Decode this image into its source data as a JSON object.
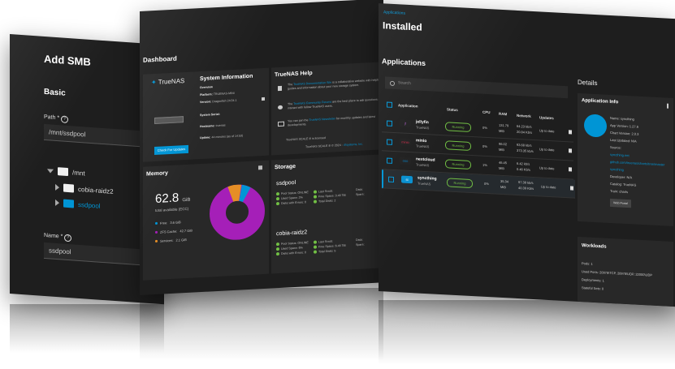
{
  "smb": {
    "title": "Add SMB",
    "section": "Basic",
    "path_label": "Path *",
    "path_value": "/mnt/ssdpool",
    "tree": [
      "/mnt",
      "cobia-raidz2",
      "ssdpool"
    ],
    "name_label": "Name *",
    "name_value": "ssdpool"
  },
  "dashboard": {
    "title": "Dashboard",
    "system_info": {
      "title": "System Information",
      "brand": "TrueNAS",
      "overview": "Overview",
      "rows": [
        {
          "k": "Platform:",
          "v": "TRUENAS-MINI"
        },
        {
          "k": "Version:",
          "v": "Dragonfish 24.04.1"
        },
        {
          "k": "System Serial:",
          "v": ""
        },
        {
          "k": "Hostname:",
          "v": "truenas"
        },
        {
          "k": "Uptime:",
          "v": "44 minutes (as of 14:53)"
        }
      ],
      "update_button": "Check For Updates"
    },
    "help": {
      "title": "TrueNAS Help",
      "rows": [
        {
          "pre": "The ",
          "link": "TrueNAS Documentation Site",
          "post": " is a collaborative website with helpful guides and information about your new storage system."
        },
        {
          "pre": "The ",
          "link": "TrueNAS Community Forums",
          "post": " are the best place to ask questions and interact with fellow TrueNAS users."
        },
        {
          "pre": "You can join the ",
          "link": "TrueNAS Newsletter",
          "post": " for monthly updates and latest developments."
        }
      ],
      "footer": "TrueNAS SCALE ® is licensed ",
      "copyright": "TrueNAS SCALE ® © 2024 - ",
      "ix": "iXsystems, Inc."
    },
    "memory": {
      "title": "Memory",
      "total": "62.8",
      "unit": "GiB",
      "subtitle": "total available (ECC)",
      "legend": [
        {
          "name": "Free:",
          "value": "3.6 GiB",
          "color": "#0095d5"
        },
        {
          "name": "ZFS Cache:",
          "value": "42.7 GiB",
          "color": "#a51fb8"
        },
        {
          "name": "Services:",
          "value": "2.1 GiB",
          "color": "#e58e26"
        }
      ]
    },
    "storage": {
      "title": "Storage",
      "pools": [
        {
          "name": "ssdpool",
          "lines": [
            "Pool Status: ONLINE",
            "Used Space: 2%",
            "Disks with Errors: 0"
          ],
          "lines2": [
            "Last Scrub:",
            "Free Space: 3.48 TiB",
            "Total Disks: 2"
          ],
          "lines3": [
            "Data:",
            "Spare:"
          ]
        },
        {
          "name": "cobia-raidz2",
          "lines": [
            "Pool Status: ONLINE",
            "Used Space: 6%",
            "Disks with Errors: 0"
          ],
          "lines2": [
            "Last Scrub:",
            "Free Space: 6.48 TiB",
            "Total Disks: 5"
          ],
          "lines3": [
            "Data:",
            "Spare:"
          ]
        }
      ]
    }
  },
  "installed": {
    "breadcrumb": "Applications",
    "title": "Installed",
    "apps_title": "Applications",
    "details_title": "Details",
    "search_placeholder": "Search",
    "headers": [
      "Application",
      "Status",
      "CPU",
      "RAM",
      "Network",
      "Updates"
    ],
    "apps": [
      {
        "name": "jellyfin",
        "catalog": "TrueNAS",
        "status": "Running",
        "cpu": "0%",
        "ram1": "131.79",
        "ram2": "MiB",
        "net1": "64.23 kb/s",
        "net2": "20.84 Kb/s",
        "updates": "Up to date",
        "logo_color": "#aa5cc3",
        "logo_bg": "#202020",
        "logo_text": "jf"
      },
      {
        "name": "minio",
        "catalog": "TrueNAS",
        "status": "Running",
        "cpu": "0%",
        "ram1": "96.02",
        "ram2": "MiB",
        "net1": "93.68 kb/s",
        "net2": "373.35 kb/s",
        "updates": "Up to date",
        "logo_color": "#c72c48",
        "logo_bg": "#202020",
        "logo_text": "minio"
      },
      {
        "name": "nextcloud",
        "catalog": "TrueNAS",
        "status": "Running",
        "cpu": "1%",
        "ram1": "46.45",
        "ram2": "MiB",
        "net1": "6.42 kb/s",
        "net2": "0.46 Kb/s",
        "updates": "Up to date",
        "logo_color": "#0082c9",
        "logo_bg": "#202020",
        "logo_text": "ooo"
      },
      {
        "name": "syncthing",
        "catalog": "TrueNAS",
        "status": "Running",
        "cpu": "0%",
        "ram1": "35.34",
        "ram2": "MiB",
        "net1": "97.38 kb/s",
        "net2": "40.39 Kb/s",
        "updates": "Up to date",
        "logo_color": "#ffffff",
        "logo_bg": "#0891d1",
        "logo_text": "st"
      }
    ],
    "app_info": {
      "title": "Application Info",
      "rows": [
        {
          "t": "Name: syncthing",
          "link": false
        },
        {
          "t": "App Version: 1.27.6",
          "link": false
        },
        {
          "t": "Chart Version: 2.0.3",
          "link": false
        },
        {
          "t": "Last Updated: N/A",
          "link": false
        },
        {
          "t": "Source:",
          "link": false
        },
        {
          "t": "syncthing.net",
          "link": true
        },
        {
          "t": "github.com/truenas/charts/tree/master",
          "link": true
        },
        {
          "t": "syncthing",
          "link": true
        },
        {
          "t": "Developer: N/A",
          "link": false
        },
        {
          "t": "Catalog: TrueNAS",
          "link": false
        },
        {
          "t": "Train: charts",
          "link": false
        }
      ],
      "web_portal": "Web Portal"
    },
    "workloads": {
      "title": "Workloads",
      "rows": [
        "Pods: 1",
        "Used Ports: 20978\\TCP, 20978\\UDP, 22000\\UDP",
        "Deployments: 1",
        "Stateful Sets: 0"
      ]
    }
  }
}
